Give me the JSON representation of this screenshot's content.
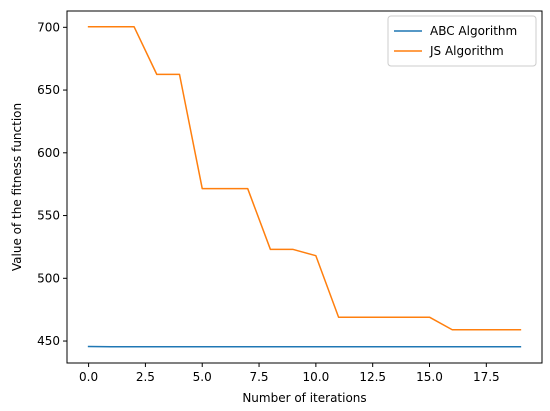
{
  "chart_data": {
    "type": "line",
    "title": "",
    "xlabel": "Number of iterations",
    "ylabel": "Value of the fitness function",
    "xlim": [
      -0.95,
      19.95
    ],
    "ylim": [
      432.5,
      713
    ],
    "xticks": [
      0.0,
      2.5,
      5.0,
      7.5,
      10.0,
      12.5,
      15.0,
      17.5
    ],
    "xtick_labels": [
      "0.0",
      "2.5",
      "5.0",
      "7.5",
      "10.0",
      "12.5",
      "15.0",
      "17.5"
    ],
    "yticks": [
      450,
      500,
      550,
      600,
      650,
      700
    ],
    "ytick_labels": [
      "450",
      "500",
      "550",
      "600",
      "650",
      "700"
    ],
    "grid": false,
    "legend_position": "upper right",
    "series": [
      {
        "name": "ABC Algorithm",
        "color": "#1f77b4",
        "x": [
          0,
          1,
          2,
          3,
          4,
          5,
          6,
          7,
          8,
          9,
          10,
          11,
          12,
          13,
          14,
          15,
          16,
          17,
          18,
          19
        ],
        "y": [
          445.6,
          445.5,
          445.5,
          445.5,
          445.5,
          445.5,
          445.5,
          445.5,
          445.5,
          445.5,
          445.5,
          445.5,
          445.5,
          445.5,
          445.5,
          445.5,
          445.5,
          445.5,
          445.5,
          445.5
        ]
      },
      {
        "name": "JS Algorithm",
        "color": "#ff7f0e",
        "x": [
          0,
          1,
          2,
          3,
          4,
          5,
          6,
          7,
          8,
          9,
          10,
          11,
          12,
          13,
          14,
          15,
          16,
          17,
          18,
          19
        ],
        "y": [
          700.5,
          700.5,
          700.5,
          662.5,
          662.5,
          571.5,
          571.5,
          571.5,
          523,
          523,
          518,
          469,
          469,
          469,
          469,
          469,
          459,
          459,
          459,
          459
        ]
      }
    ]
  }
}
